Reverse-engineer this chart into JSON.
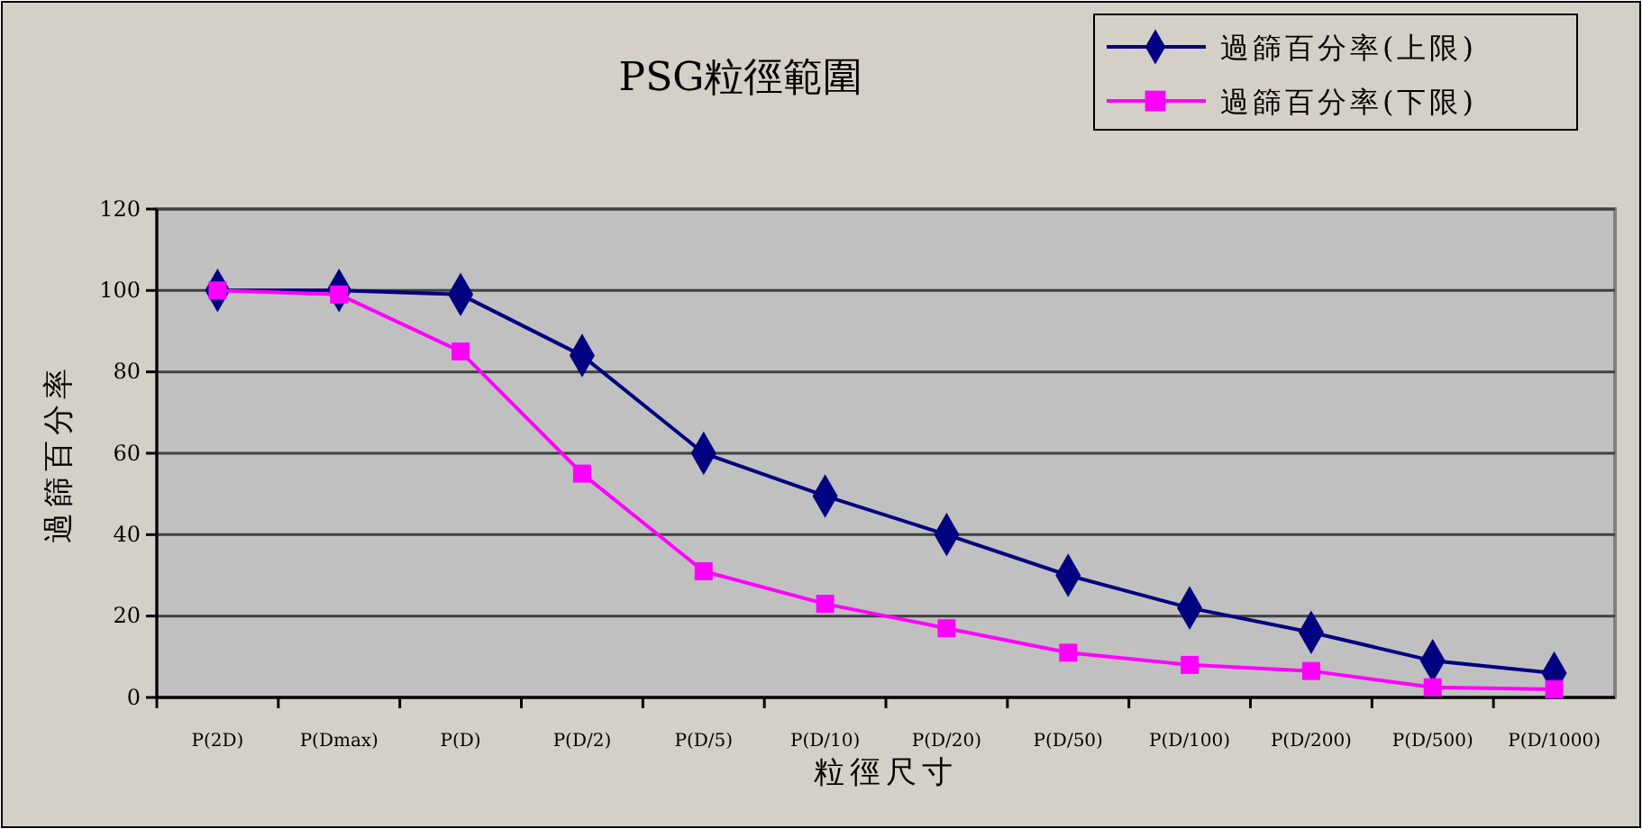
{
  "chart_data": {
    "type": "line",
    "title": "PSG粒徑範圍",
    "xlabel": "粒徑尺寸",
    "ylabel": "過篩百分率",
    "categories": [
      "P(2D)",
      "P(Dmax)",
      "P(D)",
      "P(D/2)",
      "P(D/5)",
      "P(D/10)",
      "P(D/20)",
      "P(D/50)",
      "P(D/100)",
      "P(D/200)",
      "P(D/500)",
      "P(D/1000)"
    ],
    "series": [
      {
        "name": "過篩百分率(上限)",
        "color": "#000080",
        "marker": "diamond",
        "values": [
          100,
          100,
          99,
          84,
          60,
          49.5,
          40,
          30,
          22,
          16,
          9,
          6
        ]
      },
      {
        "name": "過篩百分率(下限)",
        "color": "#ff00ff",
        "marker": "square",
        "values": [
          100,
          99,
          85,
          55,
          31,
          23,
          17,
          11,
          8,
          6.5,
          2.5,
          2
        ]
      }
    ],
    "ylim": [
      0,
      120
    ],
    "yticks": [
      0,
      20,
      40,
      60,
      80,
      100,
      120
    ],
    "grid": "y",
    "legend": "top right"
  }
}
